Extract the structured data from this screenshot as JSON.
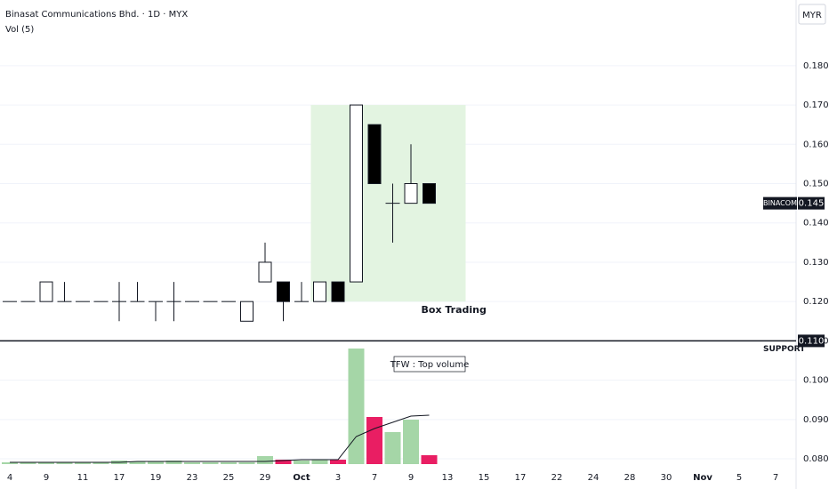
{
  "chart_data": {
    "type": "candlestick",
    "title": "Binasat Communications Bhd. · 1D · MYX",
    "volume_title": "Vol (5)",
    "currency": "MYR",
    "categories": [
      "4",
      null,
      "9",
      null,
      "11",
      null,
      "17",
      null,
      "19",
      null,
      "23",
      null,
      "25",
      null,
      "29",
      null,
      "Oct",
      null,
      "3",
      null,
      "7",
      null,
      "9",
      null,
      "13",
      null,
      "15",
      null,
      "17",
      null,
      "22",
      null,
      "24",
      null,
      "28",
      null,
      "30",
      null,
      "Nov",
      null,
      "5",
      null,
      "7"
    ],
    "open": [
      0.12,
      0.12,
      0.12,
      0.12,
      0.12,
      0.12,
      0.12,
      0.12,
      0.12,
      0.12,
      0.12,
      0.12,
      0.12,
      0.115,
      0.125,
      0.125,
      0.12,
      0.12,
      0.125,
      0.125,
      0.165,
      0.145,
      0.145,
      0.15,
      null,
      null,
      null,
      null,
      null,
      null,
      null,
      null,
      null,
      null,
      null,
      null,
      null,
      null,
      null,
      null,
      null,
      null,
      null
    ],
    "high": [
      0.12,
      0.12,
      0.125,
      0.125,
      0.12,
      0.12,
      0.125,
      0.125,
      0.12,
      0.125,
      0.12,
      0.12,
      0.12,
      0.12,
      0.135,
      0.125,
      0.125,
      0.125,
      0.125,
      0.17,
      0.165,
      0.15,
      0.16,
      0.15,
      null,
      null,
      null,
      null,
      null,
      null,
      null,
      null,
      null,
      null,
      null,
      null,
      null,
      null,
      null,
      null,
      null,
      null,
      null
    ],
    "low": [
      0.12,
      0.12,
      0.12,
      0.12,
      0.12,
      0.12,
      0.115,
      0.12,
      0.115,
      0.115,
      0.12,
      0.12,
      0.12,
      0.115,
      0.125,
      0.115,
      0.12,
      0.12,
      0.12,
      0.125,
      0.15,
      0.135,
      0.145,
      0.145,
      null,
      null,
      null,
      null,
      null,
      null,
      null,
      null,
      null,
      null,
      null,
      null,
      null,
      null,
      null,
      null,
      null,
      null,
      null
    ],
    "close": [
      0.12,
      0.12,
      0.125,
      0.12,
      0.12,
      0.12,
      0.12,
      0.12,
      0.12,
      0.12,
      0.12,
      0.12,
      0.12,
      0.12,
      0.13,
      0.12,
      0.12,
      0.125,
      0.12,
      0.17,
      0.15,
      0.145,
      0.15,
      0.145,
      null,
      null,
      null,
      null,
      null,
      null,
      null,
      null,
      null,
      null,
      null,
      null,
      null,
      null,
      null,
      null,
      null,
      null,
      null
    ],
    "volume": [
      2,
      2,
      2,
      2,
      2,
      2,
      4,
      3,
      3,
      4,
      2,
      2,
      2,
      2,
      9,
      5,
      4,
      5,
      5,
      130,
      53,
      36,
      50,
      10,
      null,
      null,
      null,
      null,
      null,
      null,
      null,
      null,
      null,
      null,
      null,
      null,
      null,
      null,
      null,
      null,
      null,
      null,
      null
    ],
    "volume_ma": [
      2,
      2,
      2,
      2,
      2,
      2,
      2,
      3,
      3,
      3,
      3,
      3,
      3,
      3,
      3,
      4,
      5,
      5,
      5,
      31,
      40,
      47,
      54,
      55,
      null,
      null,
      null,
      null,
      null,
      null,
      null,
      null,
      null,
      null,
      null,
      null,
      null,
      null,
      null,
      null,
      null,
      null,
      null
    ],
    "up_color": "#a5d6a7",
    "down_color": "#e91e63",
    "ylim": [
      0.0773,
      0.1967
    ],
    "yticks": [
      {
        "value": 0.08,
        "label": "0.080"
      },
      {
        "value": 0.09,
        "label": "0.090"
      },
      {
        "value": 0.1,
        "label": "0.100"
      },
      {
        "value": 0.11,
        "label": "0.110"
      },
      {
        "value": 0.12,
        "label": "0.120"
      },
      {
        "value": 0.13,
        "label": "0.130"
      },
      {
        "value": 0.14,
        "label": "0.140"
      },
      {
        "value": 0.15,
        "label": "0.150"
      },
      {
        "value": 0.16,
        "label": "0.160"
      },
      {
        "value": 0.17,
        "label": "0.170"
      },
      {
        "value": 0.18,
        "label": "0.180"
      }
    ],
    "grid": true,
    "box": {
      "label": "Box Trading",
      "top": 0.17,
      "bottom": 0.12,
      "from": 17,
      "to": 25,
      "color": "#e3f4e1"
    },
    "support": {
      "name": "SUPPORT",
      "value": 0.11,
      "label": "0.110"
    },
    "last_price": {
      "name": "BINACOM",
      "value": 0.145,
      "label": "0.145"
    },
    "annotation": "TFW : Top volume"
  }
}
